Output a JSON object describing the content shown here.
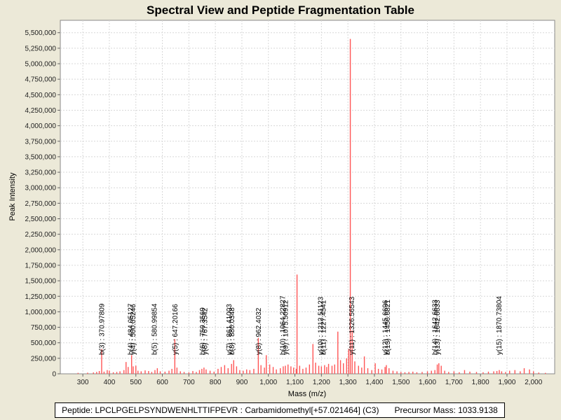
{
  "chart_data": {
    "type": "bar",
    "title": "Spectral View and Peptide Fragmentation Table",
    "xlabel": "Mass (m/z)",
    "ylabel": "Peak Intensity",
    "xlim": [
      215,
      2080
    ],
    "ylim": [
      0,
      5700000
    ],
    "x_ticks": [
      300,
      400,
      500,
      600,
      700,
      800,
      900,
      1000,
      1100,
      1200,
      1300,
      1400,
      1500,
      1600,
      1700,
      1800,
      1900,
      2000
    ],
    "x_tick_labels": [
      "300",
      "400",
      "500",
      "600",
      "700",
      "800",
      "900",
      "1,000",
      "1,100",
      "1,200",
      "1,300",
      "1,400",
      "1,500",
      "1,600",
      "1,700",
      "1,800",
      "1,900",
      "2,000"
    ],
    "y_ticks": [
      0,
      250000,
      500000,
      750000,
      1000000,
      1250000,
      1500000,
      1750000,
      2000000,
      2250000,
      2500000,
      2750000,
      3000000,
      3250000,
      3500000,
      3750000,
      4000000,
      4250000,
      4500000,
      4750000,
      5000000,
      5250000,
      5500000
    ],
    "y_tick_labels": [
      "0",
      "250,000",
      "500,000",
      "750,000",
      "1,000,000",
      "1,250,000",
      "1,500,000",
      "1,750,000",
      "2,000,000",
      "2,250,000",
      "2,500,000",
      "2,750,000",
      "3,000,000",
      "3,250,000",
      "3,500,000",
      "3,750,000",
      "4,000,000",
      "4,250,000",
      "4,500,000",
      "4,750,000",
      "5,000,000",
      "5,250,000",
      "5,500,000"
    ],
    "grid": true,
    "peak_color": "#ff5555",
    "peaks": [
      [
        282,
        15000
      ],
      [
        318,
        18000
      ],
      [
        340,
        22000
      ],
      [
        352,
        30000
      ],
      [
        362,
        45000
      ],
      [
        371,
        400000
      ],
      [
        380,
        35000
      ],
      [
        392,
        60000
      ],
      [
        400,
        50000
      ],
      [
        415,
        25000
      ],
      [
        428,
        30000
      ],
      [
        440,
        40000
      ],
      [
        455,
        60000
      ],
      [
        463,
        190000
      ],
      [
        471,
        110000
      ],
      [
        484,
        300000
      ],
      [
        490,
        120000
      ],
      [
        500,
        130000
      ],
      [
        508,
        50000
      ],
      [
        520,
        40000
      ],
      [
        535,
        55000
      ],
      [
        548,
        45000
      ],
      [
        560,
        30000
      ],
      [
        572,
        60000
      ],
      [
        581,
        90000
      ],
      [
        592,
        40000
      ],
      [
        610,
        35000
      ],
      [
        625,
        50000
      ],
      [
        636,
        80000
      ],
      [
        647,
        560000
      ],
      [
        655,
        100000
      ],
      [
        668,
        40000
      ],
      [
        682,
        30000
      ],
      [
        700,
        25000
      ],
      [
        715,
        45000
      ],
      [
        728,
        30000
      ],
      [
        740,
        60000
      ],
      [
        749,
        80000
      ],
      [
        757,
        100000
      ],
      [
        765,
        70000
      ],
      [
        780,
        50000
      ],
      [
        795,
        35000
      ],
      [
        810,
        80000
      ],
      [
        822,
        110000
      ],
      [
        835,
        140000
      ],
      [
        848,
        90000
      ],
      [
        861,
        160000
      ],
      [
        869,
        220000
      ],
      [
        880,
        120000
      ],
      [
        892,
        60000
      ],
      [
        905,
        50000
      ],
      [
        918,
        70000
      ],
      [
        930,
        60000
      ],
      [
        945,
        80000
      ],
      [
        962,
        580000
      ],
      [
        972,
        140000
      ],
      [
        985,
        100000
      ],
      [
        992,
        300000
      ],
      [
        1005,
        150000
      ],
      [
        1018,
        110000
      ],
      [
        1030,
        70000
      ],
      [
        1045,
        90000
      ],
      [
        1056,
        120000
      ],
      [
        1064,
        130000
      ],
      [
        1074,
        150000
      ],
      [
        1085,
        120000
      ],
      [
        1095,
        100000
      ],
      [
        1105,
        80000
      ],
      [
        1108,
        1600000
      ],
      [
        1118,
        130000
      ],
      [
        1130,
        80000
      ],
      [
        1142,
        100000
      ],
      [
        1155,
        150000
      ],
      [
        1168,
        480000
      ],
      [
        1178,
        180000
      ],
      [
        1190,
        130000
      ],
      [
        1200,
        120000
      ],
      [
        1212,
        140000
      ],
      [
        1220,
        110000
      ],
      [
        1227,
        160000
      ],
      [
        1240,
        130000
      ],
      [
        1250,
        150000
      ],
      [
        1262,
        680000
      ],
      [
        1272,
        220000
      ],
      [
        1283,
        170000
      ],
      [
        1295,
        250000
      ],
      [
        1303,
        400000
      ],
      [
        1309,
        5400000
      ],
      [
        1316,
        700000
      ],
      [
        1326,
        200000
      ],
      [
        1340,
        130000
      ],
      [
        1352,
        100000
      ],
      [
        1362,
        280000
      ],
      [
        1375,
        90000
      ],
      [
        1390,
        60000
      ],
      [
        1403,
        170000
      ],
      [
        1415,
        80000
      ],
      [
        1428,
        70000
      ],
      [
        1440,
        110000
      ],
      [
        1445,
        140000
      ],
      [
        1455,
        90000
      ],
      [
        1470,
        50000
      ],
      [
        1485,
        40000
      ],
      [
        1500,
        30000
      ],
      [
        1515,
        25000
      ],
      [
        1530,
        30000
      ],
      [
        1545,
        35000
      ],
      [
        1560,
        25000
      ],
      [
        1580,
        30000
      ],
      [
        1600,
        40000
      ],
      [
        1615,
        50000
      ],
      [
        1628,
        60000
      ],
      [
        1637,
        150000
      ],
      [
        1643,
        170000
      ],
      [
        1652,
        130000
      ],
      [
        1665,
        50000
      ],
      [
        1680,
        30000
      ],
      [
        1700,
        40000
      ],
      [
        1720,
        25000
      ],
      [
        1740,
        60000
      ],
      [
        1760,
        35000
      ],
      [
        1785,
        30000
      ],
      [
        1810,
        25000
      ],
      [
        1830,
        35000
      ],
      [
        1850,
        40000
      ],
      [
        1862,
        45000
      ],
      [
        1871,
        60000
      ],
      [
        1880,
        40000
      ],
      [
        1895,
        30000
      ],
      [
        1910,
        50000
      ],
      [
        1930,
        60000
      ],
      [
        1950,
        40000
      ],
      [
        1965,
        90000
      ],
      [
        1985,
        70000
      ],
      [
        2000,
        40000
      ],
      [
        2020,
        20000
      ],
      [
        2045,
        15000
      ]
    ],
    "annotations": [
      {
        "x": 371,
        "text": "b(3) : 370.97809"
      },
      {
        "x": 479,
        "text": "b(4) : 484.05127"
      },
      {
        "x": 489,
        "text": "y(4) : 500.05246"
      },
      {
        "x": 570,
        "text": "b(5) : 580.99854"
      },
      {
        "x": 647,
        "text": "y(5) : 647.20166"
      },
      {
        "x": 751,
        "text": "b(6) : 750.3569"
      },
      {
        "x": 760,
        "text": "y(6) : 767.3542"
      },
      {
        "x": 851,
        "text": "y(7) : 861.41003"
      },
      {
        "x": 862,
        "text": "b(8) : 880.0348"
      },
      {
        "x": 962,
        "text": "y(8) : 962.4032"
      },
      {
        "x": 1054,
        "text": "b(10) : 1064.22827"
      },
      {
        "x": 1064,
        "text": "y(9) : 1075.50912"
      },
      {
        "x": 1196,
        "text": "y(10) : 1212.51123"
      },
      {
        "x": 1207,
        "text": "b(11) : 1227.4541"
      },
      {
        "x": 1314,
        "text": "y(11) : 1326.56543"
      },
      {
        "x": 1440,
        "text": "y(12) : 1445.6696"
      },
      {
        "x": 1449,
        "text": "b(13) : 1456.6821"
      },
      {
        "x": 1628,
        "text": "b(14) : 1642.6633"
      },
      {
        "x": 1637,
        "text": "y(13) : 1642.6633"
      },
      {
        "x": 1870,
        "text": "y(15) : 1870.73804"
      }
    ]
  },
  "footer": {
    "peptide": "Peptide: LPCLPGELPSYNDWENHLTTIFPEVR : Carbamidomethyl[+57.021464] (C3)",
    "precursor": "Precursor Mass: 1033.9138"
  }
}
